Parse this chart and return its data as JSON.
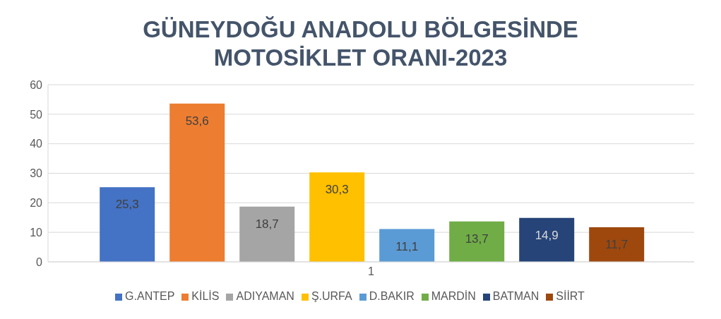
{
  "chart_data": {
    "type": "bar",
    "title": "GÜNEYDOĞU ANADOLU BÖLGESİNDE MOTOSİKLET ORANI-2023",
    "categories": [
      "1"
    ],
    "series": [
      {
        "name": "G.ANTEP",
        "color": "#4472c4",
        "values": [
          25.3
        ],
        "value_labels": [
          "25,3"
        ]
      },
      {
        "name": "KİLİS",
        "color": "#ed7d31",
        "values": [
          53.6
        ],
        "value_labels": [
          "53,6"
        ]
      },
      {
        "name": "ADIYAMAN",
        "color": "#a5a5a5",
        "values": [
          18.7
        ],
        "value_labels": [
          "18,7"
        ]
      },
      {
        "name": "Ş.URFA",
        "color": "#ffc000",
        "values": [
          30.3
        ],
        "value_labels": [
          "30,3"
        ]
      },
      {
        "name": "D.BAKIR",
        "color": "#5b9bd5",
        "values": [
          11.1
        ],
        "value_labels": [
          "11,1"
        ]
      },
      {
        "name": "MARDİN",
        "color": "#70ad47",
        "values": [
          13.7
        ],
        "value_labels": [
          "13,7"
        ]
      },
      {
        "name": "BATMAN",
        "color": "#264478",
        "values": [
          14.9
        ],
        "value_labels": [
          "14,9"
        ]
      },
      {
        "name": "SİİRT",
        "color": "#9e480e",
        "values": [
          11.7
        ],
        "value_labels": [
          "11,7"
        ]
      }
    ],
    "ylim": [
      0,
      60
    ],
    "yticks": [
      0,
      10,
      20,
      30,
      40,
      50,
      60
    ],
    "grid": "y",
    "legend": "bottom"
  }
}
